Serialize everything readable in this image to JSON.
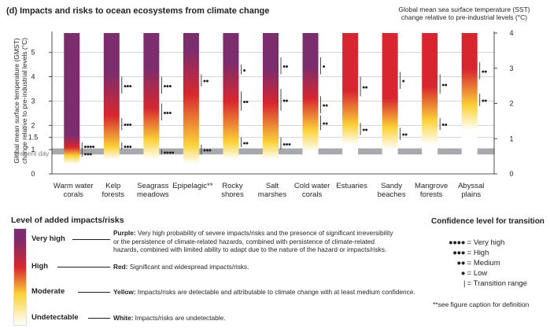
{
  "colors": {
    "purple": "#7b2d6e",
    "red": "#d7262f",
    "yellow": "#fbd238",
    "white": "#ffffff",
    "grid": "#bdbdbd",
    "present_band": "#a7a9ac",
    "text": "#231f20"
  },
  "chart_data": {
    "type": "heatmap",
    "title": "(d) Impacts and risks to ocean ecosystems from climate change",
    "ylabel": "Global mean surface temperature (GMST) change relative to pre-industrial levels (°C)",
    "y2label": "Global mean sea surface temperature (SST) change relative to pre-industrial levels (°C)",
    "ylim": [
      0,
      5.8
    ],
    "y2lim": [
      0,
      4
    ],
    "yticks": [
      "0",
      "1",
      "1.5",
      "2",
      "3",
      "4",
      "5"
    ],
    "y2ticks": [
      "0",
      "1",
      "2",
      "3",
      "4"
    ],
    "present_day_label": "present day",
    "present_day_range": [
      0.8,
      1.05
    ],
    "grid": true,
    "categories": [
      "Warm water corals",
      "Kelp forests",
      "Seagrass meadows",
      "Epipelagic**",
      "Rocky shores",
      "Salt marshes",
      "Cold water corals",
      "Estuaries",
      "Sandy beaches",
      "Mangrove forests",
      "Abyssal plains"
    ],
    "category_lines": [
      [
        "Warm water",
        "corals"
      ],
      [
        "Kelp",
        "forests"
      ],
      [
        "Seagrass",
        "meadows"
      ],
      [
        "Epipelagic**"
      ],
      [
        "Rocky",
        "shores"
      ],
      [
        "Salt",
        "marshes"
      ],
      [
        "Cold water",
        "corals"
      ],
      [
        "Estuaries"
      ],
      [
        "Sandy",
        "beaches"
      ],
      [
        "Mangrove",
        "forests"
      ],
      [
        "Abyssal",
        "plains"
      ]
    ],
    "series": [
      {
        "name": "Warm water corals",
        "stops": [
          [
            0.4,
            "white"
          ],
          [
            0.75,
            "yellow"
          ],
          [
            1.1,
            "red"
          ],
          [
            1.6,
            "purple"
          ],
          [
            5.8,
            "purple"
          ]
        ],
        "transitions": [
          {
            "range": [
              1.0,
              1.3
            ],
            "confidence": 4
          },
          {
            "range": [
              0.7,
              1.0
            ],
            "confidence": 3
          }
        ]
      },
      {
        "name": "Kelp forests",
        "stops": [
          [
            0.6,
            "white"
          ],
          [
            1.1,
            "yellow"
          ],
          [
            2.4,
            "red"
          ],
          [
            4.2,
            "purple"
          ],
          [
            5.8,
            "purple"
          ]
        ],
        "transitions": [
          {
            "range": [
              1.0,
              1.3
            ],
            "confidence": 3
          },
          {
            "range": [
              1.8,
              2.3
            ],
            "confidence": 3
          },
          {
            "range": [
              3.3,
              4.0
            ],
            "confidence": 3
          }
        ]
      },
      {
        "name": "Seagrass meadows",
        "stops": [
          [
            0.6,
            "white"
          ],
          [
            1.4,
            "yellow"
          ],
          [
            2.7,
            "red"
          ],
          [
            4.4,
            "purple"
          ],
          [
            5.8,
            "purple"
          ]
        ],
        "transitions": [
          {
            "range": [
              0.8,
              1.0
            ],
            "confidence": 4
          },
          {
            "range": [
              2.2,
              2.9
            ],
            "confidence": 3
          },
          {
            "range": [
              3.3,
              4.0
            ],
            "confidence": 3
          }
        ]
      },
      {
        "name": "Epipelagic**",
        "stops": [
          [
            0.4,
            "white"
          ],
          [
            1.2,
            "yellow"
          ],
          [
            3.3,
            "red"
          ],
          [
            5.1,
            "purple"
          ],
          [
            5.8,
            "purple"
          ]
        ],
        "transitions": [
          {
            "range": [
              0.8,
              1.2
            ],
            "confidence": 3
          },
          {
            "range": [
              3.6,
              4.1
            ],
            "confidence": 2
          }
        ]
      },
      {
        "name": "Rocky shores",
        "stops": [
          [
            0.6,
            "white"
          ],
          [
            1.3,
            "yellow"
          ],
          [
            3.0,
            "red"
          ],
          [
            4.6,
            "purple"
          ],
          [
            5.8,
            "purple"
          ]
        ],
        "transitions": [
          {
            "range": [
              1.1,
              1.5
            ],
            "confidence": 2
          },
          {
            "range": [
              2.6,
              3.4
            ],
            "confidence": 2
          },
          {
            "range": [
              4.1,
              4.5
            ],
            "confidence": 1
          }
        ]
      },
      {
        "name": "Salt marshes",
        "stops": [
          [
            0.6,
            "white"
          ],
          [
            1.3,
            "yellow"
          ],
          [
            2.9,
            "red"
          ],
          [
            4.3,
            "purple"
          ],
          [
            5.8,
            "purple"
          ]
        ],
        "transitions": [
          {
            "range": [
              1.0,
              1.5
            ],
            "confidence": 3
          },
          {
            "range": [
              2.6,
              3.5
            ],
            "confidence": 2
          },
          {
            "range": [
              4.1,
              4.8
            ],
            "confidence": 2
          }
        ]
      },
      {
        "name": "Cold water corals",
        "stops": [
          [
            0.9,
            "white"
          ],
          [
            1.8,
            "yellow"
          ],
          [
            3.1,
            "red"
          ],
          [
            4.4,
            "purple"
          ],
          [
            5.8,
            "purple"
          ]
        ],
        "transitions": [
          {
            "range": [
              1.8,
              2.4
            ],
            "confidence": 2
          },
          {
            "range": [
              2.5,
              3.2
            ],
            "confidence": 2
          },
          {
            "range": [
              4.1,
              4.8
            ],
            "confidence": 1
          }
        ]
      },
      {
        "name": "Estuaries",
        "stops": [
          [
            1.2,
            "white"
          ],
          [
            2.0,
            "yellow"
          ],
          [
            3.4,
            "red"
          ],
          [
            5.8,
            "red"
          ]
        ],
        "transitions": [
          {
            "range": [
              1.6,
              2.1
            ],
            "confidence": 2
          },
          {
            "range": [
              3.2,
              4.0
            ],
            "confidence": 2
          }
        ]
      },
      {
        "name": "Sandy beaches",
        "stops": [
          [
            1.0,
            "white"
          ],
          [
            1.9,
            "yellow"
          ],
          [
            3.1,
            "red"
          ],
          [
            5.8,
            "red"
          ]
        ],
        "transitions": [
          {
            "range": [
              1.4,
              1.9
            ],
            "confidence": 2
          },
          {
            "range": [
              3.5,
              4.2
            ],
            "confidence": 1
          }
        ]
      },
      {
        "name": "Mangrove forests",
        "stops": [
          [
            1.2,
            "white"
          ],
          [
            2.2,
            "yellow"
          ],
          [
            3.6,
            "red"
          ],
          [
            5.8,
            "red"
          ]
        ],
        "transitions": [
          {
            "range": [
              1.8,
              2.3
            ],
            "confidence": 2
          },
          {
            "range": [
              3.3,
              4.1
            ],
            "confidence": 2
          }
        ]
      },
      {
        "name": "Abyssal plains",
        "stops": [
          [
            1.8,
            "white"
          ],
          [
            2.8,
            "yellow"
          ],
          [
            4.3,
            "red"
          ],
          [
            5.8,
            "red"
          ]
        ],
        "transitions": [
          {
            "range": [
              2.8,
              3.3
            ],
            "confidence": 2
          },
          {
            "range": [
              3.9,
              4.6
            ],
            "confidence": 2
          }
        ]
      }
    ]
  },
  "legend": {
    "title": "Level of added impacts/risks",
    "levels": [
      "Very high",
      "High",
      "Moderate",
      "Undetectable"
    ],
    "descriptions": {
      "purple_head": "Purple:",
      "purple_body": "Very high probability of severe impacts/risks and the presence of significant irreversibility or the persistence of climate-related hazards, combined with persistence of climate-related hazards, combined with limited ability to adapt due to the nature of the hazard or impacts/risks.",
      "red_head": "Red:",
      "red_body": "Significant and widespread impacts/risks.",
      "yellow_head": "Yellow:",
      "yellow_body": "Impacts/risks are detectable and attributable to climate change with at least medium confidence.",
      "white_head": "White:",
      "white_body": "Impacts/risks are undetectable."
    }
  },
  "confidence_legend": {
    "title": "Confidence level for transition",
    "items": [
      {
        "dots": "●●●●",
        "label": "= Very high"
      },
      {
        "dots": "●●●",
        "label": "= High"
      },
      {
        "dots": "●●",
        "label": "= Medium"
      },
      {
        "dots": "●",
        "label": "= Low"
      },
      {
        "dots": "|",
        "label": "= Transition range"
      }
    ],
    "note": "**see figure caption for definition"
  }
}
